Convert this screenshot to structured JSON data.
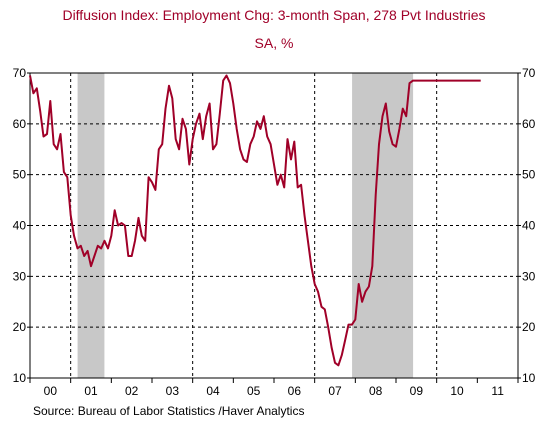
{
  "chart_data": {
    "type": "line",
    "title": "Diffusion Index: Employment Chg: 3-month Span, 278 Pvt Industries",
    "subtitle": "SA, %",
    "source": "Source:  Bureau of Labor Statistics /Haver Analytics",
    "ylim": [
      10,
      70
    ],
    "y_ticks": [
      "10",
      "20",
      "30",
      "40",
      "50",
      "60",
      "70"
    ],
    "x_tick_labels": [
      "00",
      "01",
      "02",
      "03",
      "04",
      "05",
      "06",
      "07",
      "08",
      "09",
      "10",
      "11"
    ],
    "x_range": [
      2000.0,
      2012.0
    ],
    "grid": true,
    "recessions": [
      [
        2001.17,
        2001.83
      ],
      [
        2007.92,
        2009.42
      ]
    ],
    "series": [
      {
        "color": "#a00028",
        "x": [
          2000.0,
          2000.083,
          2000.167,
          2000.25,
          2000.333,
          2000.417,
          2000.5,
          2000.583,
          2000.667,
          2000.75,
          2000.833,
          2000.917,
          2001.0,
          2001.083,
          2001.167,
          2001.25,
          2001.333,
          2001.417,
          2001.5,
          2001.583,
          2001.667,
          2001.75,
          2001.833,
          2001.917,
          2002.0,
          2002.083,
          2002.167,
          2002.25,
          2002.333,
          2002.417,
          2002.5,
          2002.583,
          2002.667,
          2002.75,
          2002.833,
          2002.917,
          2003.0,
          2003.083,
          2003.167,
          2003.25,
          2003.333,
          2003.417,
          2003.5,
          2003.583,
          2003.667,
          2003.75,
          2003.833,
          2003.917,
          2004.0,
          2004.083,
          2004.167,
          2004.25,
          2004.333,
          2004.417,
          2004.5,
          2004.583,
          2004.667,
          2004.75,
          2004.833,
          2004.917,
          2005.0,
          2005.083,
          2005.167,
          2005.25,
          2005.333,
          2005.417,
          2005.5,
          2005.583,
          2005.667,
          2005.75,
          2005.833,
          2005.917,
          2006.0,
          2006.083,
          2006.167,
          2006.25,
          2006.333,
          2006.417,
          2006.5,
          2006.583,
          2006.667,
          2006.75,
          2006.833,
          2006.917,
          2007.0,
          2007.083,
          2007.167,
          2007.25,
          2007.333,
          2007.417,
          2007.5,
          2007.583,
          2007.667,
          2007.75,
          2007.833,
          2007.917,
          2008.0,
          2008.083,
          2008.167,
          2008.25,
          2008.333,
          2008.417,
          2008.5,
          2008.583,
          2008.667,
          2008.75,
          2008.833,
          2008.917,
          2009.0,
          2009.083,
          2009.167,
          2009.25,
          2009.333,
          2009.417,
          2009.5,
          2009.583,
          2009.667,
          2009.75,
          2009.833,
          2009.917,
          2010.0,
          2010.083,
          2010.167,
          2010.25,
          2010.333,
          2010.417,
          2010.5,
          2010.583,
          2010.667,
          2010.75,
          2010.833,
          2010.917,
          2011.0,
          2011.083
        ],
        "values": [
          69.5,
          66.0,
          67.0,
          62.5,
          57.5,
          58.0,
          64.5,
          56.0,
          55.0,
          58.0,
          50.5,
          49.5,
          42.0,
          38.0,
          35.5,
          36.0,
          34.0,
          35.0,
          32.0,
          34.0,
          36.0,
          35.5,
          37.0,
          35.5,
          38.0,
          43.0,
          40.0,
          40.5,
          40.0,
          34.0,
          34.0,
          37.0,
          41.5,
          38.0,
          37.0,
          49.5,
          48.5,
          47.0,
          55.0,
          56.0,
          63.0,
          67.5,
          65.0,
          57.0,
          55.0,
          61.0,
          59.0,
          52.0,
          57.0,
          60.0,
          62.0,
          57.0,
          61.5,
          64.0,
          55.0,
          56.0,
          62.0,
          68.5,
          69.5,
          68.0,
          64.0,
          59.0,
          55.0,
          53.0,
          52.5,
          56.0,
          57.5,
          60.5,
          59.0,
          61.5,
          57.5,
          56.0,
          52.0,
          48.0,
          50.0,
          47.5,
          57.0,
          53.0,
          56.5,
          47.5,
          48.0,
          42.0,
          37.0,
          32.0,
          28.5,
          27.0,
          24.0,
          23.5,
          20.0,
          16.0,
          13.0,
          12.5,
          14.5,
          17.5,
          20.5,
          20.5,
          21.5,
          28.5,
          25.0,
          27.0,
          28.0,
          32.0,
          46.0,
          56.0,
          61.5,
          64.0,
          58.5,
          56.0,
          55.5,
          59.0,
          63.0,
          61.5,
          68.0,
          68.5,
          68.5,
          68.5,
          68.5,
          68.5,
          68.5,
          68.5,
          68.5,
          68.5,
          68.5,
          68.5,
          68.5,
          68.5,
          68.5,
          68.5,
          68.5,
          68.5,
          68.5,
          68.5,
          68.5,
          68.5
        ]
      }
    ]
  }
}
